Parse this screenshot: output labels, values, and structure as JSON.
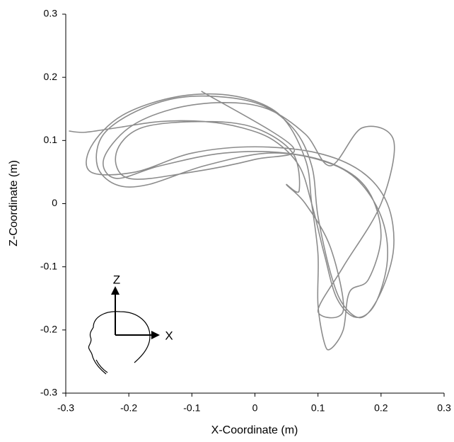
{
  "chart_data": {
    "type": "line",
    "x_label": "X-Coordinate (m)",
    "y_label": "Z-Coordinate (m)",
    "annotations": [
      "Z",
      "X"
    ],
    "color": "#8c8c8c",
    "xlim": [
      -0.3,
      0.3
    ],
    "xticks": [
      -0.3,
      -0.2,
      -0.1,
      0,
      0.1,
      0.2,
      0.3
    ],
    "ylim": [
      -0.3,
      0.3
    ],
    "yticks": [
      -0.3,
      -0.2,
      -0.1,
      0,
      0.1,
      0.2,
      0.3
    ],
    "x": [
      -0.295,
      -0.27,
      -0.22,
      -0.15,
      -0.08,
      -0.02,
      0.03,
      0.07,
      0.09,
      0.11,
      0.13,
      0.16,
      0.19,
      0.21,
      0.2,
      0.16,
      0.1,
      0.02,
      -0.08,
      -0.17,
      -0.22,
      -0.25,
      -0.24,
      -0.18,
      -0.1,
      0.0,
      0.06,
      0.09,
      0.1,
      0.12,
      0.14,
      0.17,
      0.2,
      0.22,
      0.21,
      0.17,
      0.1,
      0.0,
      -0.1,
      -0.19,
      -0.26,
      -0.26,
      -0.21,
      -0.12,
      -0.03,
      0.04,
      0.08,
      0.09,
      0.1,
      0.1,
      0.11,
      0.12,
      0.14,
      0.15,
      0.18,
      0.2,
      0.18,
      0.13,
      0.05,
      -0.05,
      -0.15,
      -0.22,
      -0.24,
      -0.2,
      -0.13,
      -0.05,
      0.02,
      0.08,
      0.12,
      0.17,
      0.22,
      0.2,
      0.14,
      0.1,
      0.14,
      0.12,
      0.08,
      0.05,
      0.07,
      0.06,
      0.0,
      -0.08,
      -0.18,
      -0.22,
      -0.2,
      -0.1,
      0.0,
      0.06,
      -0.085
    ],
    "values": [
      0.115,
      0.113,
      0.12,
      0.13,
      0.13,
      0.12,
      0.1,
      0.06,
      0.0,
      -0.08,
      -0.15,
      -0.18,
      -0.16,
      -0.09,
      -0.02,
      0.04,
      0.07,
      0.08,
      0.06,
      0.03,
      0.03,
      0.06,
      0.11,
      0.15,
      0.17,
      0.16,
      0.12,
      0.06,
      -0.02,
      -0.11,
      -0.16,
      -0.18,
      -0.14,
      -0.07,
      0.0,
      0.05,
      0.08,
      0.09,
      0.08,
      0.05,
      0.05,
      0.09,
      0.14,
      0.17,
      0.17,
      0.14,
      0.07,
      0.0,
      -0.08,
      -0.16,
      -0.22,
      -0.23,
      -0.2,
      -0.14,
      -0.12,
      -0.05,
      0.02,
      0.06,
      0.08,
      0.08,
      0.06,
      0.04,
      0.07,
      0.12,
      0.15,
      0.16,
      0.15,
      0.11,
      0.06,
      0.12,
      0.1,
      0.0,
      -0.1,
      -0.17,
      -0.17,
      -0.07,
      0.0,
      0.03,
      0.02,
      0.08,
      0.12,
      0.13,
      0.12,
      0.08,
      0.04,
      0.05,
      0.07,
      0.09,
      0.178
    ]
  }
}
